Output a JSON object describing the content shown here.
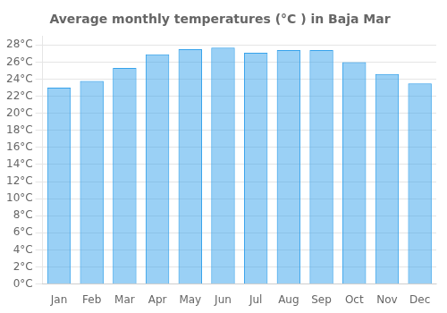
{
  "chart_data": {
    "type": "bar",
    "title": "Average monthly temperatures (°C ) in Baja Mar",
    "categories": [
      "Jan",
      "Feb",
      "Mar",
      "Apr",
      "May",
      "Jun",
      "Jul",
      "Aug",
      "Sep",
      "Oct",
      "Nov",
      "Dec"
    ],
    "values": [
      23.0,
      23.8,
      25.3,
      26.9,
      27.5,
      27.7,
      27.1,
      27.4,
      27.4,
      26.0,
      24.6,
      23.5
    ],
    "ylim": [
      0,
      29
    ],
    "yticks": [
      {
        "value": 0,
        "label": "0°C"
      },
      {
        "value": 2,
        "label": "2°C"
      },
      {
        "value": 4,
        "label": "4°C"
      },
      {
        "value": 6,
        "label": "6°C"
      },
      {
        "value": 8,
        "label": "8°C"
      },
      {
        "value": 10,
        "label": "10°C"
      },
      {
        "value": 12,
        "label": "12°C"
      },
      {
        "value": 14,
        "label": "14°C"
      },
      {
        "value": 16,
        "label": "16°C"
      },
      {
        "value": 18,
        "label": "18°C"
      },
      {
        "value": 20,
        "label": "20°C"
      },
      {
        "value": 22,
        "label": "22°C"
      },
      {
        "value": 24,
        "label": "24°C"
      },
      {
        "value": 26,
        "label": "26°C"
      },
      {
        "value": 28,
        "label": "28°C"
      }
    ],
    "grid": true
  }
}
